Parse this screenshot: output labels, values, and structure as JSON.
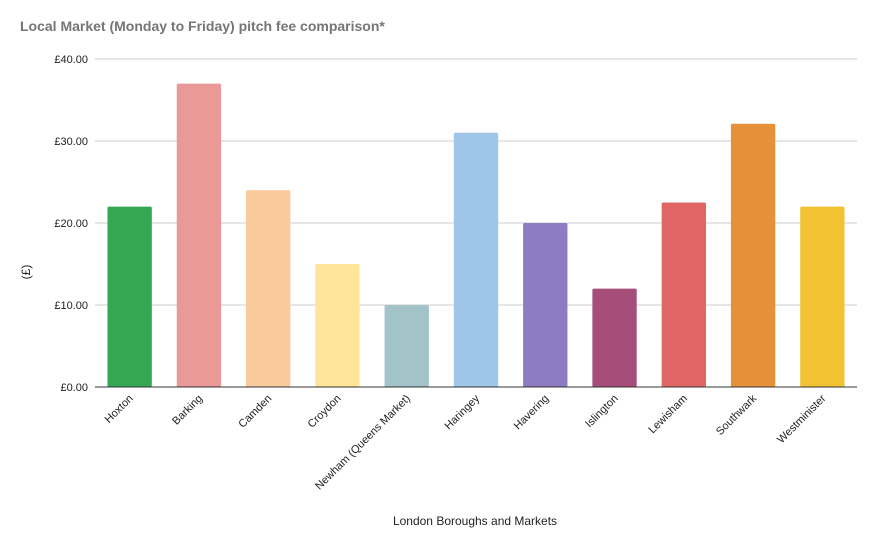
{
  "chart_data": {
    "type": "bar",
    "title": "Local Market (Monday to Friday) pitch fee comparison*",
    "xlabel": "London Boroughs and Markets",
    "ylabel": "(£)",
    "ylim": [
      0,
      40
    ],
    "yticks": [
      "£0.00",
      "£10.00",
      "£20.00",
      "£30.00",
      "£40.00"
    ],
    "ytick_values": [
      0,
      10,
      20,
      30,
      40
    ],
    "grid": true,
    "legend": "none",
    "categories": [
      "Hoxton",
      "Barking",
      "Camden",
      "Croydon",
      "Newham (Queens Market)",
      "Haringey",
      "Havering",
      "Islington",
      "Lewisham",
      "Southwark",
      "Westminister"
    ],
    "values": [
      22,
      37,
      24,
      15,
      10,
      31,
      20,
      12,
      22.5,
      32.1,
      22
    ],
    "colors": [
      "#34a853",
      "#ea9999",
      "#f9cb9c",
      "#ffe599",
      "#a2c4c9",
      "#9fc5e8",
      "#8e7cc3",
      "#a64d79",
      "#e06666",
      "#e69138",
      "#f1c232"
    ]
  }
}
